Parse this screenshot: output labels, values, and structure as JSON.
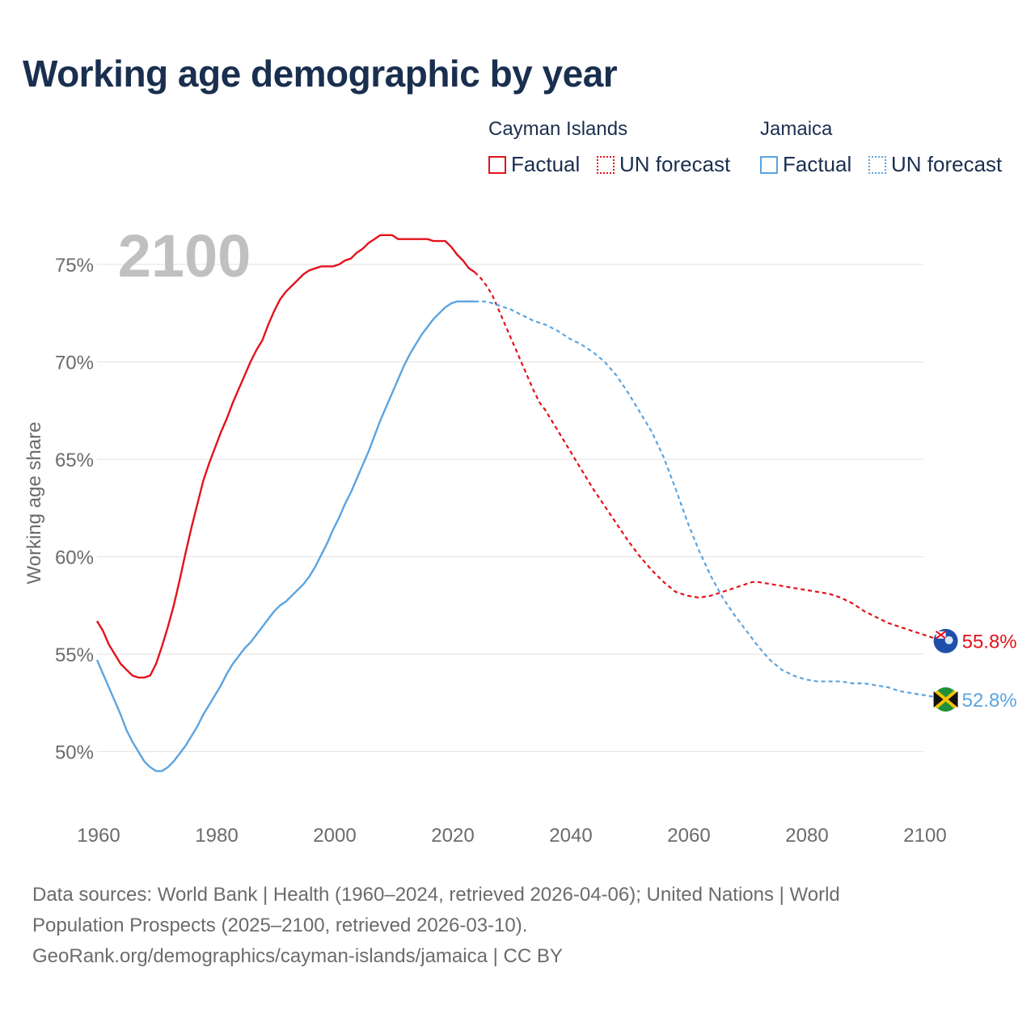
{
  "title": "Working age demographic by year",
  "legend": {
    "groups": [
      {
        "name": "Cayman Islands",
        "factual_label": "Factual",
        "forecast_label": "UN forecast"
      },
      {
        "name": "Jamaica",
        "factual_label": "Factual",
        "forecast_label": "UN forecast"
      }
    ]
  },
  "colors": {
    "cayman": "#e3121b",
    "jamaica": "#5ba4e0",
    "year_watermark": "#c0c0c0",
    "grid": "#e6e6e6",
    "tick": "#6b6b6b"
  },
  "year_watermark": "2100",
  "footer": {
    "line1": "Data sources: World Bank | Health (1960–2024, retrieved 2026-04-06); United Nations | World",
    "line2": "Population Prospects (2025–2100, retrieved 2026-03-10).",
    "line3": "GeoRank.org/demographics/cayman-islands/jamaica | CC BY"
  },
  "chart_data": {
    "type": "line",
    "title": "Working age demographic by year",
    "xlabel": "",
    "ylabel": "Working age share",
    "xlim": [
      1960,
      2103
    ],
    "ylim": [
      48.5,
      77
    ],
    "x_ticks": [
      1960,
      1980,
      2000,
      2020,
      2040,
      2060,
      2080,
      2100
    ],
    "x_tick_labels": [
      "1960",
      "1980",
      "2000",
      "2020",
      "2040",
      "2060",
      "2080",
      "2100"
    ],
    "y_ticks": [
      50,
      55,
      60,
      65,
      70,
      75
    ],
    "y_tick_labels": [
      "50%",
      "55%",
      "60%",
      "65%",
      "70%",
      "75%"
    ],
    "grid": true,
    "factual_end_year": 2024,
    "series": [
      {
        "name": "Cayman Islands",
        "color": "#e3121b",
        "end_label": "55.8%",
        "flag_icon": "cayman-islands-flag-icon",
        "points": [
          [
            1960,
            56.7
          ],
          [
            1961,
            56.2
          ],
          [
            1962,
            55.5
          ],
          [
            1963,
            55.0
          ],
          [
            1964,
            54.5
          ],
          [
            1965,
            54.2
          ],
          [
            1966,
            53.9
          ],
          [
            1967,
            53.8
          ],
          [
            1968,
            53.8
          ],
          [
            1969,
            53.9
          ],
          [
            1970,
            54.5
          ],
          [
            1971,
            55.4
          ],
          [
            1972,
            56.4
          ],
          [
            1973,
            57.5
          ],
          [
            1974,
            58.8
          ],
          [
            1975,
            60.2
          ],
          [
            1976,
            61.5
          ],
          [
            1977,
            62.7
          ],
          [
            1978,
            63.9
          ],
          [
            1979,
            64.8
          ],
          [
            1980,
            65.6
          ],
          [
            1981,
            66.4
          ],
          [
            1982,
            67.1
          ],
          [
            1983,
            67.9
          ],
          [
            1984,
            68.6
          ],
          [
            1985,
            69.3
          ],
          [
            1986,
            70.0
          ],
          [
            1987,
            70.6
          ],
          [
            1988,
            71.1
          ],
          [
            1989,
            71.9
          ],
          [
            1990,
            72.6
          ],
          [
            1991,
            73.2
          ],
          [
            1992,
            73.6
          ],
          [
            1993,
            73.9
          ],
          [
            1994,
            74.2
          ],
          [
            1995,
            74.5
          ],
          [
            1996,
            74.7
          ],
          [
            1997,
            74.8
          ],
          [
            1998,
            74.9
          ],
          [
            1999,
            74.9
          ],
          [
            2000,
            74.9
          ],
          [
            2001,
            75.0
          ],
          [
            2002,
            75.2
          ],
          [
            2003,
            75.3
          ],
          [
            2004,
            75.6
          ],
          [
            2005,
            75.8
          ],
          [
            2006,
            76.1
          ],
          [
            2007,
            76.3
          ],
          [
            2008,
            76.5
          ],
          [
            2009,
            76.5
          ],
          [
            2010,
            76.5
          ],
          [
            2011,
            76.3
          ],
          [
            2012,
            76.3
          ],
          [
            2013,
            76.3
          ],
          [
            2014,
            76.3
          ],
          [
            2015,
            76.3
          ],
          [
            2016,
            76.3
          ],
          [
            2017,
            76.2
          ],
          [
            2018,
            76.2
          ],
          [
            2019,
            76.2
          ],
          [
            2020,
            75.9
          ],
          [
            2021,
            75.5
          ],
          [
            2022,
            75.2
          ],
          [
            2023,
            74.8
          ],
          [
            2024,
            74.6
          ],
          [
            2025,
            74.3
          ],
          [
            2026,
            73.9
          ],
          [
            2027,
            73.4
          ],
          [
            2028,
            72.7
          ],
          [
            2029,
            72.0
          ],
          [
            2030,
            71.3
          ],
          [
            2031,
            70.6
          ],
          [
            2032,
            69.9
          ],
          [
            2033,
            69.2
          ],
          [
            2034,
            68.5
          ],
          [
            2035,
            67.9
          ],
          [
            2036,
            67.5
          ],
          [
            2037,
            67.0
          ],
          [
            2038,
            66.5
          ],
          [
            2039,
            66.0
          ],
          [
            2040,
            65.5
          ],
          [
            2042,
            64.5
          ],
          [
            2044,
            63.5
          ],
          [
            2046,
            62.6
          ],
          [
            2048,
            61.7
          ],
          [
            2050,
            60.8
          ],
          [
            2052,
            60.0
          ],
          [
            2054,
            59.3
          ],
          [
            2056,
            58.7
          ],
          [
            2058,
            58.2
          ],
          [
            2060,
            58.0
          ],
          [
            2062,
            57.9
          ],
          [
            2064,
            58.0
          ],
          [
            2066,
            58.2
          ],
          [
            2068,
            58.4
          ],
          [
            2070,
            58.6
          ],
          [
            2071,
            58.7
          ],
          [
            2072,
            58.7
          ],
          [
            2074,
            58.6
          ],
          [
            2076,
            58.5
          ],
          [
            2078,
            58.4
          ],
          [
            2080,
            58.3
          ],
          [
            2082,
            58.2
          ],
          [
            2084,
            58.1
          ],
          [
            2086,
            57.9
          ],
          [
            2088,
            57.6
          ],
          [
            2090,
            57.2
          ],
          [
            2092,
            56.9
          ],
          [
            2094,
            56.6
          ],
          [
            2096,
            56.4
          ],
          [
            2098,
            56.2
          ],
          [
            2100,
            56.0
          ],
          [
            2102,
            55.8
          ]
        ]
      },
      {
        "name": "Jamaica",
        "color": "#5ba4e0",
        "end_label": "52.8%",
        "flag_icon": "jamaica-flag-icon",
        "points": [
          [
            1960,
            54.7
          ],
          [
            1961,
            54.0
          ],
          [
            1962,
            53.3
          ],
          [
            1963,
            52.6
          ],
          [
            1964,
            51.9
          ],
          [
            1965,
            51.1
          ],
          [
            1966,
            50.5
          ],
          [
            1967,
            50.0
          ],
          [
            1968,
            49.5
          ],
          [
            1969,
            49.2
          ],
          [
            1970,
            49.0
          ],
          [
            1971,
            49.0
          ],
          [
            1972,
            49.2
          ],
          [
            1973,
            49.5
          ],
          [
            1974,
            49.9
          ],
          [
            1975,
            50.3
          ],
          [
            1976,
            50.8
          ],
          [
            1977,
            51.3
          ],
          [
            1978,
            51.9
          ],
          [
            1979,
            52.4
          ],
          [
            1980,
            52.9
          ],
          [
            1981,
            53.4
          ],
          [
            1982,
            54.0
          ],
          [
            1983,
            54.5
          ],
          [
            1984,
            54.9
          ],
          [
            1985,
            55.3
          ],
          [
            1986,
            55.6
          ],
          [
            1987,
            56.0
          ],
          [
            1988,
            56.4
          ],
          [
            1989,
            56.8
          ],
          [
            1990,
            57.2
          ],
          [
            1991,
            57.5
          ],
          [
            1992,
            57.7
          ],
          [
            1993,
            58.0
          ],
          [
            1994,
            58.3
          ],
          [
            1995,
            58.6
          ],
          [
            1996,
            59.0
          ],
          [
            1997,
            59.5
          ],
          [
            1998,
            60.1
          ],
          [
            1999,
            60.7
          ],
          [
            2000,
            61.4
          ],
          [
            2001,
            62.0
          ],
          [
            2002,
            62.7
          ],
          [
            2003,
            63.3
          ],
          [
            2004,
            64.0
          ],
          [
            2005,
            64.7
          ],
          [
            2006,
            65.4
          ],
          [
            2007,
            66.2
          ],
          [
            2008,
            67.0
          ],
          [
            2009,
            67.7
          ],
          [
            2010,
            68.4
          ],
          [
            2011,
            69.1
          ],
          [
            2012,
            69.8
          ],
          [
            2013,
            70.4
          ],
          [
            2014,
            70.9
          ],
          [
            2015,
            71.4
          ],
          [
            2016,
            71.8
          ],
          [
            2017,
            72.2
          ],
          [
            2018,
            72.5
          ],
          [
            2019,
            72.8
          ],
          [
            2020,
            73.0
          ],
          [
            2021,
            73.1
          ],
          [
            2022,
            73.1
          ],
          [
            2023,
            73.1
          ],
          [
            2024,
            73.1
          ],
          [
            2025,
            73.1
          ],
          [
            2026,
            73.1
          ],
          [
            2027,
            73.0
          ],
          [
            2028,
            72.9
          ],
          [
            2030,
            72.7
          ],
          [
            2032,
            72.4
          ],
          [
            2034,
            72.1
          ],
          [
            2036,
            71.9
          ],
          [
            2038,
            71.6
          ],
          [
            2040,
            71.2
          ],
          [
            2042,
            70.9
          ],
          [
            2044,
            70.5
          ],
          [
            2046,
            70.0
          ],
          [
            2048,
            69.3
          ],
          [
            2050,
            68.4
          ],
          [
            2052,
            67.4
          ],
          [
            2054,
            66.4
          ],
          [
            2056,
            65.1
          ],
          [
            2058,
            63.5
          ],
          [
            2060,
            61.8
          ],
          [
            2062,
            60.3
          ],
          [
            2064,
            59.0
          ],
          [
            2066,
            57.9
          ],
          [
            2068,
            57.0
          ],
          [
            2070,
            56.2
          ],
          [
            2072,
            55.4
          ],
          [
            2074,
            54.7
          ],
          [
            2076,
            54.2
          ],
          [
            2078,
            53.9
          ],
          [
            2080,
            53.7
          ],
          [
            2082,
            53.6
          ],
          [
            2084,
            53.6
          ],
          [
            2086,
            53.6
          ],
          [
            2088,
            53.5
          ],
          [
            2090,
            53.5
          ],
          [
            2092,
            53.4
          ],
          [
            2094,
            53.3
          ],
          [
            2096,
            53.1
          ],
          [
            2098,
            53.0
          ],
          [
            2100,
            52.9
          ],
          [
            2102,
            52.8
          ]
        ]
      }
    ]
  }
}
